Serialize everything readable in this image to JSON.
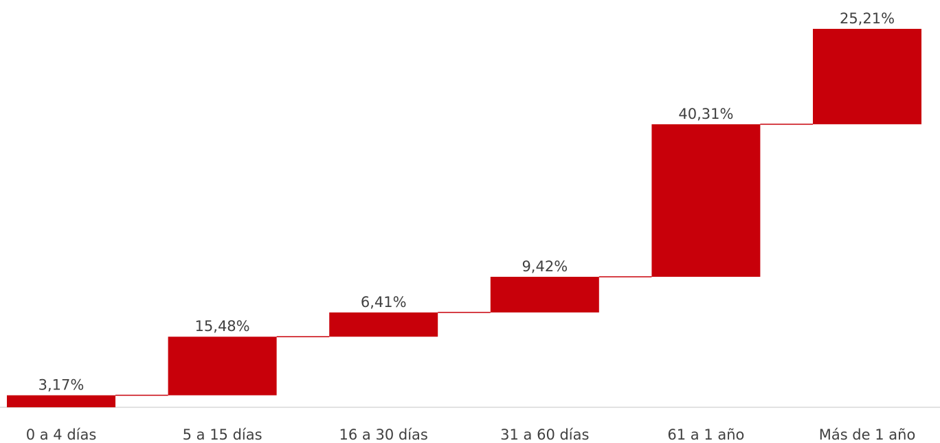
{
  "chart_data": {
    "type": "bar",
    "subtype": "waterfall",
    "categories": [
      "0 a 4 días",
      "5 a 15 días",
      "16 a 30 días",
      "31 a 60 días",
      "61 a 1 año",
      "Más de 1 año"
    ],
    "values": [
      3.17,
      15.48,
      6.41,
      9.42,
      40.31,
      25.21
    ],
    "data_labels": [
      "3,17%",
      "15,48%",
      "6,41%",
      "9,42%",
      "40,31%",
      "25,21%"
    ],
    "ylim": [
      0,
      100
    ],
    "grid": false,
    "legend": "none",
    "bar_color": "#c8000a",
    "label_color": "#404040",
    "baseline_color": "#d9d9d9"
  }
}
